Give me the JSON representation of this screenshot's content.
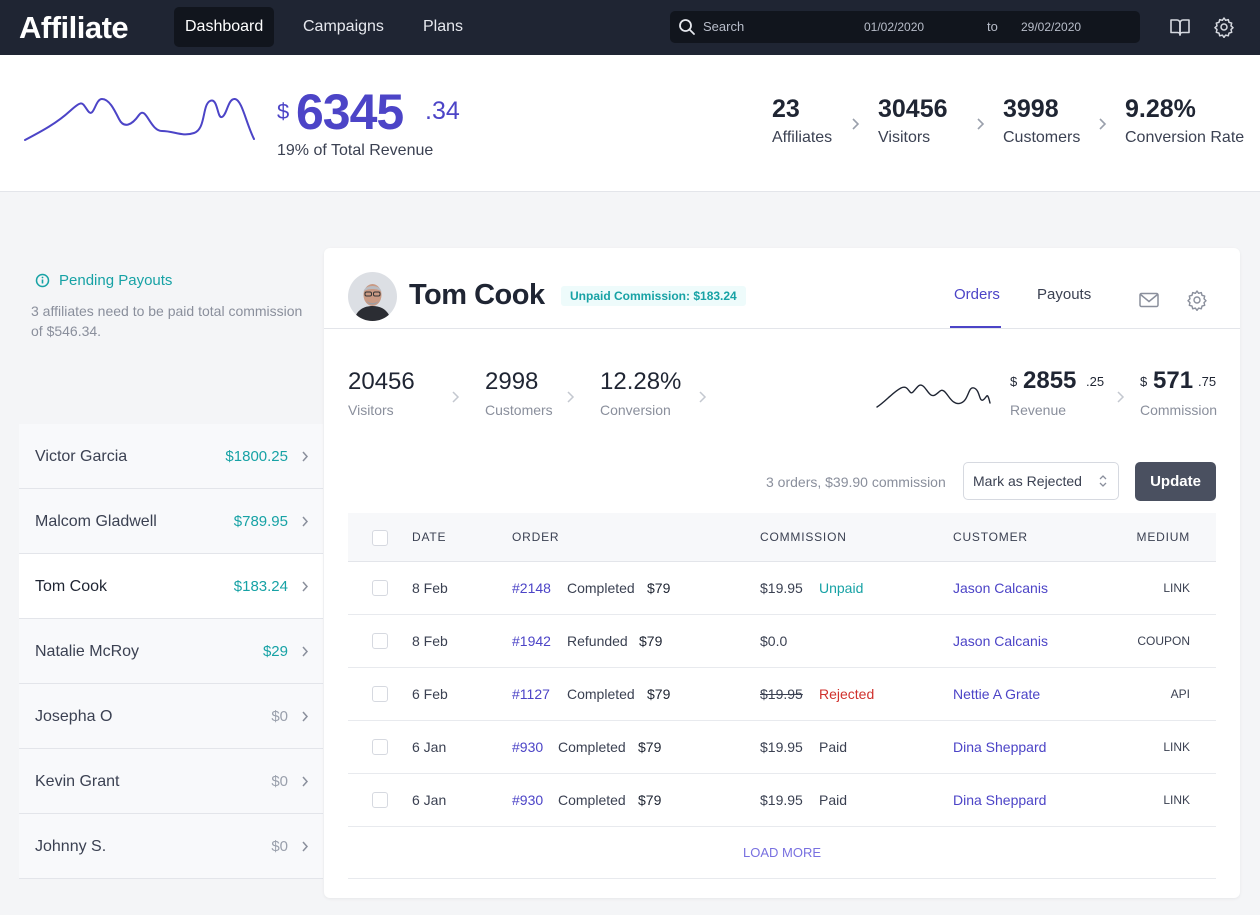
{
  "app": {
    "brand": "Affiliate"
  },
  "nav": {
    "items": [
      "Dashboard",
      "Campaigns",
      "Plans"
    ],
    "active": "Dashboard"
  },
  "search": {
    "placeholder": "Search",
    "date_from": "01/02/2020",
    "date_to_label": "to",
    "date_to": "29/02/2020"
  },
  "top_icons": [
    "book-icon",
    "gear-icon"
  ],
  "summary": {
    "currency": "$",
    "amount": "6345",
    "cents": ".34",
    "subtitle": "19% of Total Revenue",
    "stats": [
      {
        "value": "23",
        "label": "Affiliates"
      },
      {
        "value": "30456",
        "label": "Visitors"
      },
      {
        "value": "3998",
        "label": "Customers"
      },
      {
        "value": "9.28%",
        "label": "Conversion Rate"
      }
    ]
  },
  "pending": {
    "title": "Pending Payouts",
    "description": "3 affiliates need to be paid total commission of $546.34."
  },
  "affiliates": [
    {
      "name": "Victor Garcia",
      "amount": "$1800.25",
      "zero": false,
      "selected": false
    },
    {
      "name": "Malcom Gladwell",
      "amount": "$789.95",
      "zero": false,
      "selected": false
    },
    {
      "name": "Tom Cook",
      "amount": "$183.24",
      "zero": false,
      "selected": true
    },
    {
      "name": "Natalie McRoy",
      "amount": "$29",
      "zero": false,
      "selected": false
    },
    {
      "name": "Josepha O",
      "amount": "$0",
      "zero": true,
      "selected": false
    },
    {
      "name": "Kevin Grant",
      "amount": "$0",
      "zero": true,
      "selected": false
    },
    {
      "name": "Johnny S.",
      "amount": "$0",
      "zero": true,
      "selected": false
    }
  ],
  "detail": {
    "name": "Tom Cook",
    "badge": "Unpaid Commission: $183.24",
    "tabs": [
      "Orders",
      "Payouts"
    ],
    "active_tab": "Orders",
    "stats": [
      {
        "value": "20456",
        "label": "Visitors"
      },
      {
        "value": "2998",
        "label": "Customers"
      },
      {
        "value": "12.28%",
        "label": "Conversion"
      }
    ],
    "revenue": {
      "currency": "$",
      "amount": "2855",
      "cents": ".25",
      "label": "Revenue"
    },
    "commission": {
      "currency": "$",
      "amount": "571",
      "cents": ".75",
      "label": "Commission"
    },
    "orders_summary": "3 orders, $39.90 commission",
    "status_select": "Mark as Rejected",
    "update_label": "Update"
  },
  "table": {
    "headers": [
      "DATE",
      "ORDER",
      "COMMISSION",
      "CUSTOMER",
      "MEDIUM"
    ],
    "rows": [
      {
        "date": "8 Feb",
        "order": "#2148",
        "status": "Completed",
        "price": "$79",
        "commission": "$19.95",
        "commission_status": "Unpaid",
        "customer": "Jason Calcanis",
        "medium": "LINK"
      },
      {
        "date": "8 Feb",
        "order": "#1942",
        "status": "Refunded",
        "price": "$79",
        "commission": "$0.0",
        "commission_status": "",
        "customer": "Jason Calcanis",
        "medium": "COUPON"
      },
      {
        "date": "6 Feb",
        "order": "#1127",
        "status": "Completed",
        "price": "$79",
        "commission": "$19.95",
        "commission_status": "Rejected",
        "customer": "Nettie A Grate",
        "medium": "API"
      },
      {
        "date": "6 Jan",
        "order": "#930",
        "status": "Completed",
        "price": "$79",
        "commission": "$19.95",
        "commission_status": "Paid",
        "customer": "Dina Sheppard",
        "medium": "LINK"
      },
      {
        "date": "6 Jan",
        "order": "#930",
        "status": "Completed",
        "price": "$79",
        "commission": "$19.95",
        "commission_status": "Paid",
        "customer": "Dina Sheppard",
        "medium": "LINK"
      }
    ],
    "load_more": "LOAD MORE"
  },
  "colors": {
    "primary": "#4c44c7",
    "teal": "#17a2a5",
    "navbar": "#1f2533",
    "rejected": "#d0312d"
  }
}
